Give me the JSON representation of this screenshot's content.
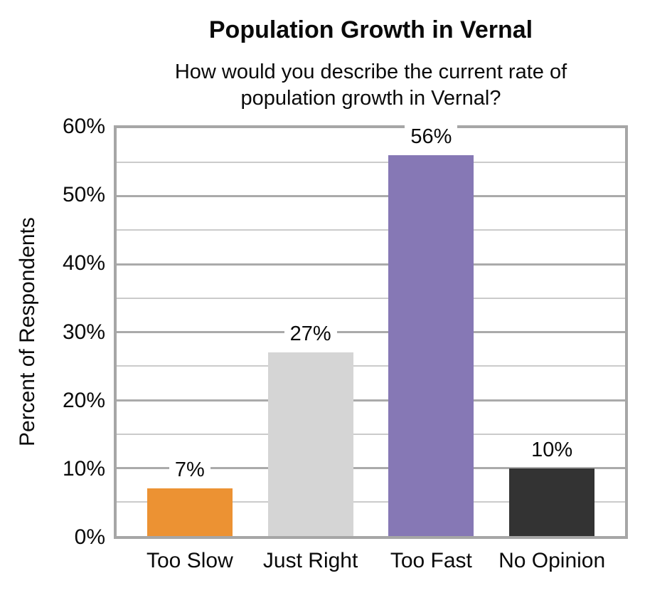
{
  "header": {
    "title": "Population Growth in Vernal",
    "subtitle": "How would you describe the current rate of population growth in Vernal?"
  },
  "chart_data": {
    "type": "bar",
    "title": "Population Growth in Vernal",
    "subtitle": "How would you describe the current rate of population growth in Vernal?",
    "categories": [
      "Too Slow",
      "Just Right",
      "Too Fast",
      "No Opinion"
    ],
    "values": [
      7,
      27,
      56,
      10
    ],
    "data_labels": [
      "7%",
      "27%",
      "56%",
      "10%"
    ],
    "bar_colors": [
      "#EC9233",
      "#D5D5D5",
      "#8678B5",
      "#333333"
    ],
    "xlabel": "",
    "ylabel": "Percent of Respondents",
    "ylim": [
      0,
      60
    ],
    "ytick_interval": 10,
    "minor_gridline_interval": 5,
    "ytick_labels": [
      "0%",
      "10%",
      "20%",
      "30%",
      "40%",
      "50%",
      "60%"
    ],
    "grid": true,
    "legend_position": "none"
  },
  "colors": {
    "plot_border": "#A6A6A6",
    "major_gridline": "#AAAAAA",
    "minor_gridline": "#CBCBCB",
    "text": "#0A0A0A",
    "background": "#FFFFFF"
  }
}
